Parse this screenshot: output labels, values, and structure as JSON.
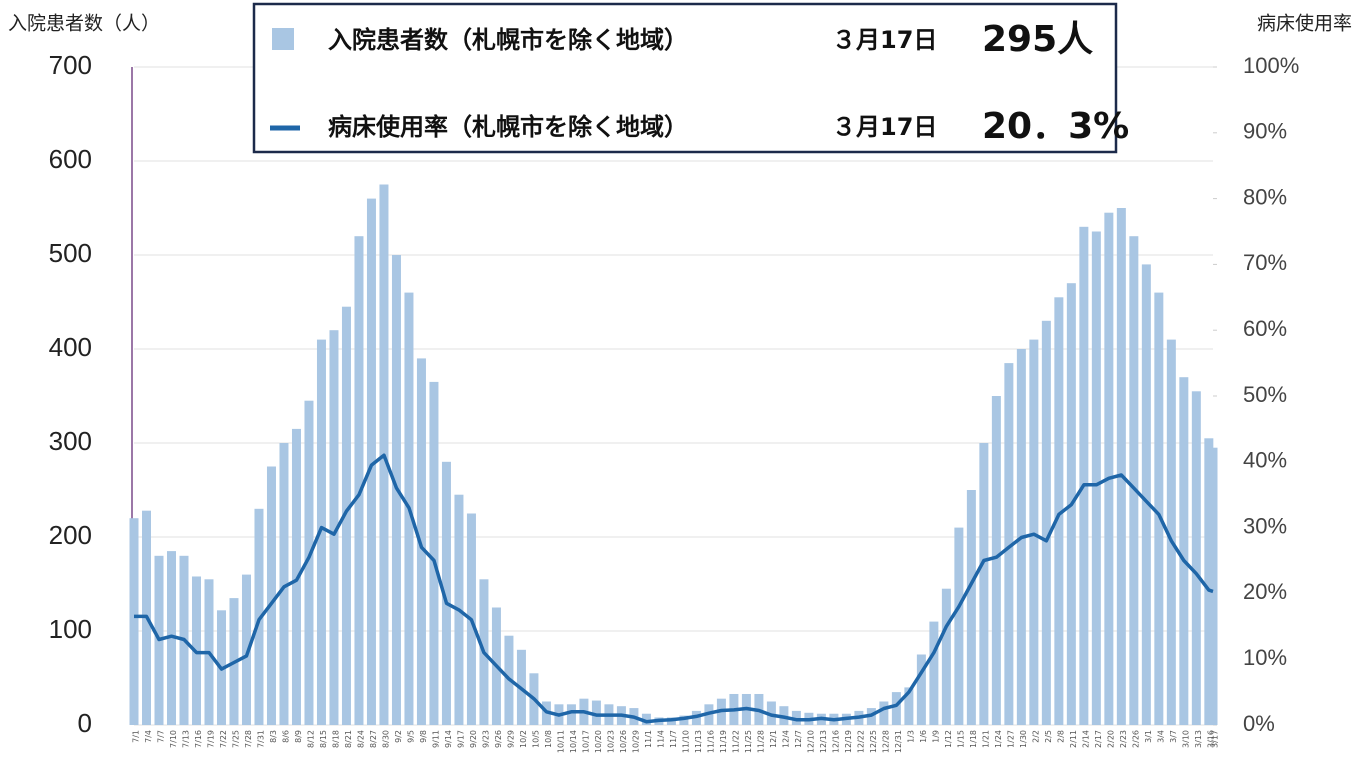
{
  "chart_data": {
    "type": "bar_line",
    "y_title": "入院患者数（人）",
    "y2_title": "病床使用率",
    "legend": {
      "bar_label": "入院患者数（札幌市を除く地域）",
      "bar_date": "３月17日",
      "bar_value": "295人",
      "line_label": "病床使用率（札幌市を除く地域）",
      "line_date": "３月17日",
      "line_value": "20．3%"
    },
    "categories": [
      "7/1",
      "7/4",
      "7/7",
      "7/10",
      "7/13",
      "7/16",
      "7/19",
      "7/22",
      "7/25",
      "7/28",
      "7/31",
      "8/3",
      "8/6",
      "8/9",
      "8/12",
      "8/15",
      "8/18",
      "8/21",
      "8/24",
      "8/27",
      "8/30",
      "9/2",
      "9/5",
      "9/8",
      "9/11",
      "9/14",
      "9/17",
      "9/20",
      "9/23",
      "9/26",
      "9/29",
      "10/2",
      "10/5",
      "10/8",
      "10/11",
      "10/14",
      "10/17",
      "10/20",
      "10/23",
      "10/26",
      "10/29",
      "11/1",
      "11/4",
      "11/7",
      "11/10",
      "11/13",
      "11/16",
      "11/19",
      "11/22",
      "11/25",
      "11/28",
      "12/1",
      "12/4",
      "12/7",
      "12/10",
      "12/13",
      "12/16",
      "12/19",
      "12/22",
      "12/25",
      "12/28",
      "12/31",
      "1/3",
      "1/6",
      "1/9",
      "1/12",
      "1/15",
      "1/18",
      "1/21",
      "1/24",
      "1/27",
      "1/30",
      "2/2",
      "2/5",
      "2/8",
      "2/11",
      "2/14",
      "2/17",
      "2/20",
      "2/23",
      "2/26",
      "3/1",
      "3/4",
      "3/7",
      "3/10",
      "3/13",
      "3/16",
      "3/17"
    ],
    "x_days": [
      0,
      3,
      6,
      9,
      12,
      15,
      18,
      21,
      24,
      27,
      30,
      33,
      36,
      39,
      42,
      45,
      48,
      51,
      54,
      57,
      60,
      63,
      66,
      69,
      72,
      75,
      78,
      81,
      84,
      87,
      90,
      93,
      96,
      99,
      102,
      105,
      108,
      111,
      114,
      117,
      120,
      123,
      126,
      129,
      132,
      135,
      138,
      141,
      144,
      147,
      150,
      153,
      156,
      159,
      162,
      165,
      168,
      171,
      174,
      177,
      180,
      183,
      186,
      189,
      192,
      195,
      198,
      201,
      204,
      207,
      210,
      213,
      216,
      219,
      222,
      225,
      228,
      231,
      234,
      237,
      240,
      243,
      246,
      249,
      252,
      255,
      258,
      259
    ],
    "series": [
      {
        "name": "入院患者数",
        "color": "#a9c6e3",
        "values": [
          220,
          228,
          180,
          185,
          180,
          158,
          155,
          122,
          135,
          160,
          230,
          275,
          300,
          315,
          345,
          410,
          420,
          445,
          520,
          560,
          575,
          500,
          460,
          390,
          365,
          280,
          245,
          225,
          155,
          125,
          95,
          80,
          55,
          25,
          22,
          22,
          28,
          26,
          22,
          20,
          18,
          12,
          8,
          8,
          10,
          15,
          22,
          28,
          33,
          33,
          33,
          25,
          20,
          15,
          13,
          12,
          12,
          12,
          15,
          18,
          25,
          35,
          40,
          75,
          110,
          145,
          210,
          250,
          300,
          350,
          385,
          400,
          410,
          430,
          455,
          470,
          530,
          525,
          545,
          550,
          520,
          490,
          460,
          410,
          370,
          355,
          305,
          295
        ]
      },
      {
        "name": "病床使用率",
        "color": "#1f66a8",
        "axis": "y2",
        "values": [
          16.5,
          16.5,
          13,
          13.5,
          13,
          11,
          11,
          8.5,
          9.5,
          10.5,
          16,
          18.5,
          21,
          22,
          25.5,
          30,
          29,
          32.5,
          35,
          39.5,
          41,
          36,
          33,
          27,
          25,
          18.5,
          17.5,
          16,
          11,
          9,
          7,
          5.5,
          4,
          2,
          1.5,
          2,
          2,
          1.5,
          1.5,
          1.5,
          1.2,
          0.5,
          0.7,
          0.8,
          1,
          1.3,
          1.8,
          2.2,
          2.3,
          2.5,
          2.2,
          1.5,
          1.2,
          0.8,
          0.8,
          1,
          0.8,
          1,
          1.2,
          1.5,
          2.5,
          3,
          5,
          8,
          11,
          15,
          18,
          21.5,
          25,
          25.5,
          27,
          28.5,
          29,
          28,
          32,
          33.5,
          36.5,
          36.5,
          37.5,
          38,
          36,
          34,
          32,
          28,
          25,
          23,
          20.5,
          20.3
        ]
      }
    ],
    "xlim": [
      0,
      259
    ],
    "ylim": [
      0,
      700
    ],
    "yticks": [
      0,
      100,
      200,
      300,
      400,
      500,
      600,
      700
    ],
    "y2lim": [
      0,
      100
    ],
    "y2ticks": [
      {
        "value": 0,
        "label": "0%"
      },
      {
        "value": 10,
        "label": "10%"
      },
      {
        "value": 20,
        "label": "20%"
      },
      {
        "value": 30,
        "label": "30%"
      },
      {
        "value": 40,
        "label": "40%"
      },
      {
        "value": 50,
        "label": "50%"
      },
      {
        "value": 60,
        "label": "60%"
      },
      {
        "value": 70,
        "label": "70%"
      },
      {
        "value": 80,
        "label": "80%"
      },
      {
        "value": 90,
        "label": "90%"
      },
      {
        "value": 100,
        "label": "100%"
      }
    ],
    "grid": true
  }
}
